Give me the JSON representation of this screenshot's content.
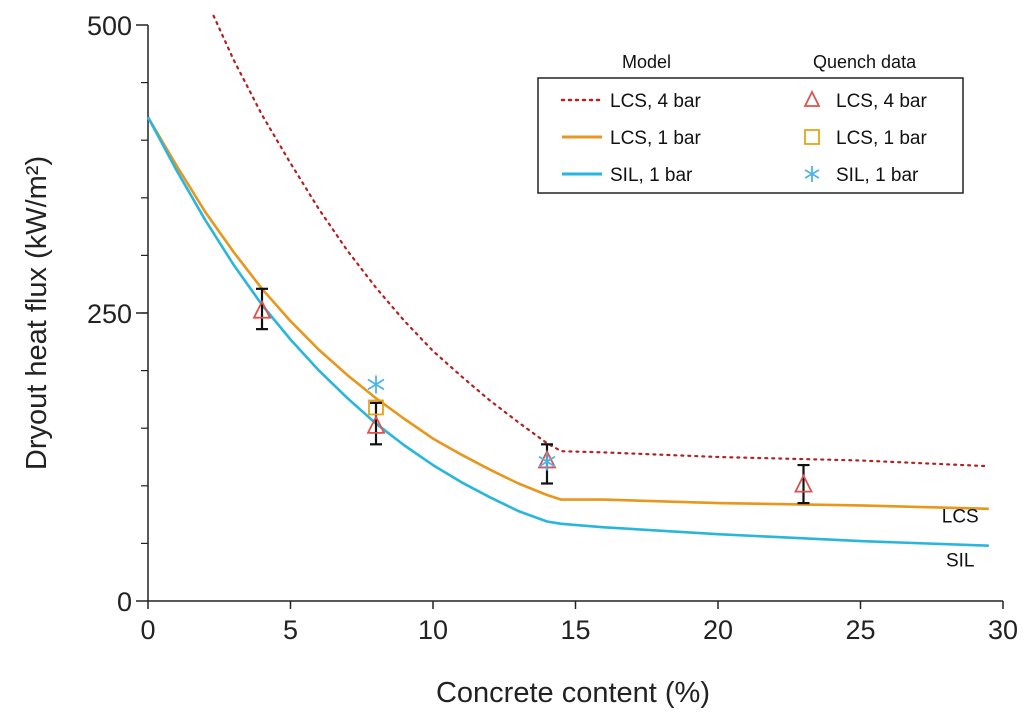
{
  "chart_data": {
    "type": "line",
    "xlabel": "Concrete content (%)",
    "ylabel": "Dryout heat flux (kW/m²)",
    "xlim": [
      0,
      30
    ],
    "ylim": [
      0,
      500
    ],
    "x_ticks": [
      0,
      5,
      10,
      15,
      20,
      25,
      30
    ],
    "y_tick_labels": [
      0,
      250,
      500
    ],
    "y_minor_step": 50,
    "grid": false,
    "legend": {
      "placement": "top-right",
      "model_header": "Model",
      "data_header": "Quench data",
      "entries": [
        {
          "key": "lcs4",
          "label": "LCS, 4 bar",
          "data_label": "LCS, 4 bar"
        },
        {
          "key": "lcs1",
          "label": "LCS, 1 bar",
          "data_label": "LCS, 1 bar"
        },
        {
          "key": "sil1",
          "label": "SIL, 1 bar",
          "data_label": "SIL, 1 bar"
        }
      ]
    },
    "series": [
      {
        "key": "lcs4",
        "name": "LCS, 4 bar",
        "style": "dotted",
        "color": "#b22222",
        "points": [
          [
            2.3,
            508
          ],
          [
            3,
            470
          ],
          [
            4,
            422
          ],
          [
            5,
            380
          ],
          [
            6,
            340
          ],
          [
            7,
            304
          ],
          [
            8,
            272
          ],
          [
            9,
            243
          ],
          [
            10,
            217
          ],
          [
            11,
            195
          ],
          [
            12,
            174
          ],
          [
            13,
            155
          ],
          [
            14,
            137
          ],
          [
            14.5,
            130
          ],
          [
            16,
            129
          ],
          [
            20,
            125
          ],
          [
            25,
            122
          ],
          [
            29.5,
            117
          ]
        ]
      },
      {
        "key": "lcs1",
        "name": "LCS, 1 bar",
        "style": "solid",
        "color": "#e8961c",
        "points": [
          [
            0,
            420
          ],
          [
            1,
            378
          ],
          [
            2,
            338
          ],
          [
            3,
            303
          ],
          [
            4,
            271
          ],
          [
            5,
            243
          ],
          [
            6,
            218
          ],
          [
            7,
            196
          ],
          [
            8,
            176
          ],
          [
            9,
            158
          ],
          [
            10,
            141
          ],
          [
            11,
            127
          ],
          [
            12,
            114
          ],
          [
            13,
            102
          ],
          [
            14,
            92
          ],
          [
            14.5,
            88
          ],
          [
            16,
            88
          ],
          [
            20,
            85
          ],
          [
            25,
            83
          ],
          [
            29.5,
            80
          ]
        ]
      },
      {
        "key": "sil1",
        "name": "SIL, 1 bar",
        "style": "solid",
        "color": "#29b6dd",
        "points": [
          [
            0,
            420
          ],
          [
            1,
            374
          ],
          [
            2,
            331
          ],
          [
            3,
            292
          ],
          [
            4,
            257
          ],
          [
            5,
            227
          ],
          [
            6,
            200
          ],
          [
            7,
            176
          ],
          [
            8,
            154
          ],
          [
            9,
            135
          ],
          [
            10,
            118
          ],
          [
            11,
            103
          ],
          [
            12,
            90
          ],
          [
            13,
            78
          ],
          [
            14,
            69
          ],
          [
            14.5,
            67
          ],
          [
            16,
            64
          ],
          [
            20,
            58
          ],
          [
            25,
            52
          ],
          [
            29.5,
            48
          ]
        ]
      }
    ],
    "quench_data": [
      {
        "key": "lcs4",
        "marker": "triangle",
        "color": "#d9534f",
        "points": [
          {
            "x": 4,
            "y": 252
          },
          {
            "x": 8,
            "y": 152
          },
          {
            "x": 14,
            "y": 122
          },
          {
            "x": 23,
            "y": 101
          }
        ]
      },
      {
        "key": "lcs1",
        "marker": "square",
        "color": "#e8a317",
        "points": [
          {
            "x": 8,
            "y": 168
          }
        ]
      },
      {
        "key": "sil1",
        "marker": "asterisk",
        "color": "#4fb3e8",
        "points": [
          {
            "x": 8,
            "y": 188
          },
          {
            "x": 14,
            "y": 121
          }
        ]
      }
    ],
    "error_bars": [
      {
        "x": 4,
        "low": 236,
        "high": 271
      },
      {
        "x": 8,
        "low": 136,
        "high": 172
      },
      {
        "x": 14,
        "low": 102,
        "high": 136
      },
      {
        "x": 23,
        "low": 85,
        "high": 118
      }
    ],
    "annotations": [
      {
        "text": "LCS",
        "x": 28.5,
        "y": 68
      },
      {
        "text": "SIL",
        "x": 28.5,
        "y": 30
      }
    ]
  }
}
